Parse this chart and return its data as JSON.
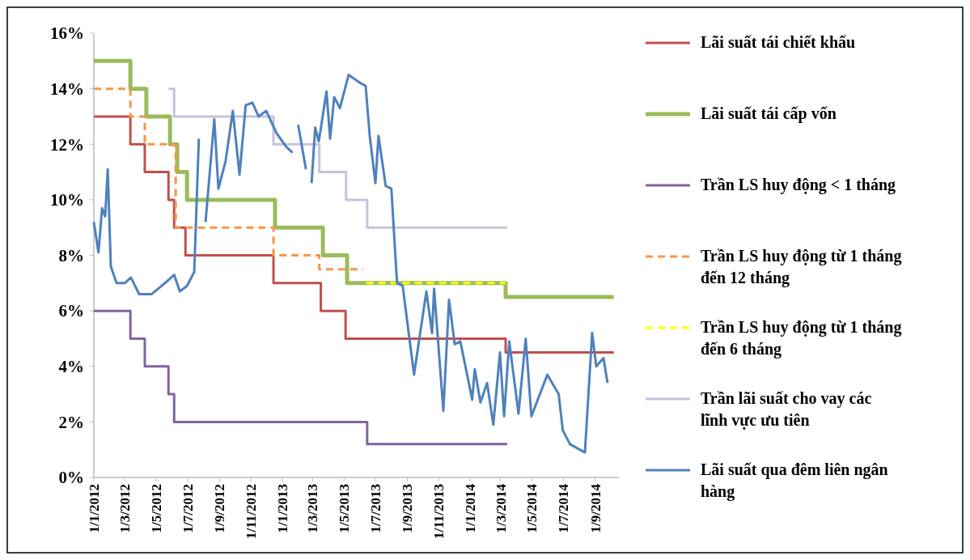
{
  "chart_data": {
    "type": "step",
    "xlim": [
      "2012-01-01",
      "2014-10-17"
    ],
    "ylim": [
      0,
      16
    ],
    "xticks": [
      {
        "value": "2012-01-01",
        "label": "1/1/2012"
      },
      {
        "value": "2012-03-01",
        "label": "1/3/2012"
      },
      {
        "value": "2012-05-01",
        "label": "1/5/2012"
      },
      {
        "value": "2012-07-01",
        "label": "1/7/2012"
      },
      {
        "value": "2012-09-01",
        "label": "1/9/2012"
      },
      {
        "value": "2012-11-01",
        "label": "1/11/2012"
      },
      {
        "value": "2013-01-01",
        "label": "1/1/2013"
      },
      {
        "value": "2013-03-01",
        "label": "1/3/2013"
      },
      {
        "value": "2013-05-01",
        "label": "1/5/2013"
      },
      {
        "value": "2013-07-01",
        "label": "1/7/2013"
      },
      {
        "value": "2013-09-01",
        "label": "1/9/2013"
      },
      {
        "value": "2013-11-01",
        "label": "1/11/2013"
      },
      {
        "value": "2014-01-01",
        "label": "1/1/2014"
      },
      {
        "value": "2014-03-01",
        "label": "1/3/2014"
      },
      {
        "value": "2014-05-01",
        "label": "1/5/2014"
      },
      {
        "value": "2014-07-01",
        "label": "1/7/2014"
      },
      {
        "value": "2014-09-01",
        "label": "1/9/2014"
      }
    ],
    "yticks": [
      {
        "value": 0,
        "label": "0%"
      },
      {
        "value": 2,
        "label": "2%"
      },
      {
        "value": 4,
        "label": "4%"
      },
      {
        "value": 6,
        "label": "6%"
      },
      {
        "value": 8,
        "label": "8%"
      },
      {
        "value": 10,
        "label": "10%"
      },
      {
        "value": 12,
        "label": "12%"
      },
      {
        "value": 14,
        "label": "14%"
      },
      {
        "value": 16,
        "label": "16%"
      }
    ],
    "grid": false,
    "legend": "right",
    "marker": "none",
    "series": [
      {
        "name": "Lãi suất tái chiết khấu",
        "color": "#c0504d",
        "line_style": "solid",
        "x": [
          "2012-01-01",
          "2012-03-12",
          "2012-04-09",
          "2012-05-25",
          "2012-06-05",
          "2012-06-27",
          "2012-12-15",
          "2013-03-17",
          "2013-05-04",
          "2014-03-11",
          "2014-10-07"
        ],
        "values": [
          13,
          12,
          11,
          10,
          9,
          8,
          7,
          6,
          5,
          4.5,
          4.5
        ]
      },
      {
        "name": "Lãi suất tái cấp vốn",
        "color": "#9bbb59",
        "line_style": "solid",
        "x": [
          "2012-01-01",
          "2012-03-12",
          "2012-04-12",
          "2012-05-28",
          "2012-06-11",
          "2012-06-30",
          "2012-12-18",
          "2013-03-21",
          "2013-05-07",
          "2014-03-11",
          "2014-10-07"
        ],
        "values": [
          15,
          14,
          13,
          12,
          11,
          10,
          9,
          8,
          7,
          6.5,
          6.5
        ]
      },
      {
        "name": "Trần LS huy động < 1 tháng",
        "color": "#8064a2",
        "line_style": "solid",
        "x": [
          "2012-01-01",
          "2012-03-12",
          "2012-04-09",
          "2012-05-25",
          "2012-06-05",
          "2013-06-15",
          "2014-03-14"
        ],
        "values": [
          6,
          5,
          4,
          3,
          2,
          1.2,
          1.2
        ]
      },
      {
        "name": "Trần LS huy động từ 1 tháng đến 12 tháng",
        "color": "#f79646",
        "line_style": "dashed",
        "x": [
          "2012-01-01",
          "2012-03-12",
          "2012-04-09",
          "2012-06-08",
          "2012-12-15",
          "2013-03-14",
          "2013-06-07"
        ],
        "values": [
          14,
          13,
          12,
          9,
          8,
          7.5,
          7.5
        ]
      },
      {
        "name": "Trần LS huy động từ 1 tháng đến 6 tháng",
        "color": "#ffff00",
        "line_style": "dashed",
        "x": [
          "2013-06-13",
          "2014-03-11"
        ],
        "values": [
          7,
          7
        ]
      },
      {
        "name": "Trần lãi suất cho vay các lĩnh vực ưu tiên",
        "color": "#c5c3dd",
        "line_style": "solid",
        "x": [
          "2012-05-25",
          "2012-06-05",
          "2012-12-15",
          "2013-03-14",
          "2013-05-05",
          "2013-06-15",
          "2014-03-14"
        ],
        "values": [
          14,
          13,
          12,
          11,
          10,
          9,
          9
        ]
      },
      {
        "name": "Lãi suất qua đêm liên ngân hàng",
        "type": "line",
        "color": "#4f81bd",
        "line_style": "solid",
        "x": [
          "2012-01-01",
          "2012-01-10",
          "2012-01-17",
          "2012-01-23",
          "2012-01-28",
          "2012-02-03",
          "2012-02-14",
          "2012-03-01",
          "2012-03-13",
          "2012-03-29",
          "2012-04-22",
          "2012-05-18",
          "2012-06-05",
          "2012-06-16",
          "2012-06-30",
          "2012-07-14",
          "2012-07-23",
          "2012-07-30",
          "2012-08-05",
          "2012-08-22",
          "2012-08-30",
          "2012-09-13",
          "2012-09-27",
          "2012-10-10",
          "2012-10-22",
          "2012-11-04",
          "2012-11-16",
          "2012-12-01",
          "2012-12-21",
          "2013-01-09",
          "2013-01-21",
          "2013-01-26",
          "2013-02-01",
          "2013-02-16",
          "2013-02-22",
          "2013-02-27",
          "2013-03-06",
          "2013-03-13",
          "2013-03-28",
          "2013-04-04",
          "2013-04-12",
          "2013-04-23",
          "2013-05-10",
          "2013-06-02",
          "2013-06-12",
          "2013-06-20",
          "2013-07-01",
          "2013-07-07",
          "2013-07-21",
          "2013-08-01",
          "2013-08-12",
          "2013-08-23",
          "2013-09-14",
          "2013-10-08",
          "2013-10-19",
          "2013-10-23",
          "2013-11-10",
          "2013-11-21",
          "2013-12-02",
          "2013-12-13",
          "2014-01-05",
          "2014-01-10",
          "2014-01-21",
          "2014-02-03",
          "2014-02-15",
          "2014-02-28",
          "2014-03-08",
          "2014-03-18",
          "2014-04-05",
          "2014-04-19",
          "2014-04-30",
          "2014-05-31",
          "2014-06-22",
          "2014-06-30",
          "2014-07-14",
          "2014-08-12",
          "2014-08-26",
          "2014-09-03",
          "2014-09-17",
          "2014-09-25"
        ],
        "values": [
          9.2,
          8.1,
          9.7,
          9.4,
          11.1,
          7.6,
          7.0,
          7.0,
          7.2,
          6.6,
          6.6,
          7.0,
          7.3,
          6.7,
          6.9,
          7.4,
          12.2,
          null,
          9.2,
          12.9,
          10.4,
          11.4,
          13.2,
          10.9,
          13.4,
          13.5,
          13.0,
          13.2,
          12.4,
          11.9,
          11.7,
          null,
          12.7,
          11.1,
          null,
          10.6,
          12.6,
          12.1,
          13.9,
          12.2,
          13.7,
          13.3,
          14.5,
          14.2,
          14.1,
          12.3,
          10.6,
          12.3,
          10.5,
          10.4,
          7.0,
          6.9,
          3.7,
          6.7,
          5.2,
          6.8,
          2.4,
          6.4,
          4.8,
          4.9,
          2.8,
          3.9,
          2.7,
          3.4,
          1.9,
          4.5,
          2.2,
          4.9,
          2.3,
          5.0,
          2.2,
          3.7,
          3.0,
          1.7,
          1.2,
          0.9,
          5.2,
          4.0,
          4.3,
          3.4
        ]
      }
    ]
  }
}
